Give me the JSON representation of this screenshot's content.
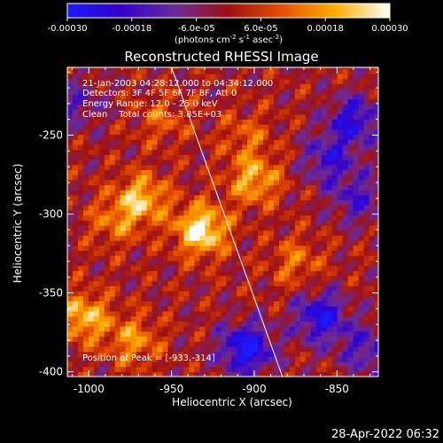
{
  "colorbar": {
    "ticks": [
      "-0.00030",
      "-0.00018",
      "-6.0e-05",
      "6.0e-05",
      "0.00018",
      "0.00030"
    ],
    "units_main": "(photons cm",
    "units_sup1": "-2",
    "units_mid": " s",
    "units_sup2": "-1",
    "units_end": " asec",
    "units_sup3": "-2",
    "units_close": ")",
    "stops": [
      "#1a1aff",
      "#3300cc",
      "#6a2a9a",
      "#a01010",
      "#e85000",
      "#ffb000",
      "#ffffff"
    ]
  },
  "chart_data": {
    "type": "heatmap",
    "title": "Reconstructed RHESSI Image",
    "xlabel": "Heliocentric X (arcsec)",
    "ylabel": "Heliocentric Y (arcsec)",
    "xlim": [
      -1013,
      -825
    ],
    "ylim": [
      -403,
      -207
    ],
    "xticks": [
      -1000,
      -950,
      -900,
      -850
    ],
    "xtick_labels": [
      "-1000",
      "-950",
      "-900",
      "-850"
    ],
    "yticks": [
      -400,
      -350,
      -300,
      -250
    ],
    "ytick_labels": [
      "-400",
      "-350",
      "-300",
      "-250"
    ],
    "color_range": [
      -0.0003,
      0.0003
    ],
    "peak": [
      -933,
      -314
    ],
    "hot_spots": [
      {
        "x": -932,
        "y": -310,
        "value": 0.0003
      },
      {
        "x": -900,
        "y": -278,
        "value": 0.0002
      },
      {
        "x": -968,
        "y": -290,
        "value": 0.00022
      },
      {
        "x": -1003,
        "y": -365,
        "value": 0.00022
      },
      {
        "x": -973,
        "y": -380,
        "value": 0.00016
      },
      {
        "x": -875,
        "y": -330,
        "value": 0.00012
      },
      {
        "x": -905,
        "y": -250,
        "value": 0.0001
      },
      {
        "x": -985,
        "y": -305,
        "value": 0.00012
      },
      {
        "x": -955,
        "y": -240,
        "value": 0.0001
      }
    ],
    "cold_spots": [
      {
        "x": -905,
        "y": -385,
        "value": -0.0003
      },
      {
        "x": -860,
        "y": -365,
        "value": -0.00025
      },
      {
        "x": -840,
        "y": -240,
        "value": -0.00022
      },
      {
        "x": -855,
        "y": -265,
        "value": -0.00018
      },
      {
        "x": -838,
        "y": -290,
        "value": -0.00016
      },
      {
        "x": -1007,
        "y": -230,
        "value": -0.00012
      },
      {
        "x": -833,
        "y": -385,
        "value": -0.00016
      }
    ],
    "limb_line": [
      [
        -950,
        -207
      ],
      [
        -883,
        -403
      ]
    ]
  },
  "annotations": {
    "time_range": "21-Jan-2003 04:28:12.000 to 04:34:12.000",
    "detectors": "Detectors: 3F 4F 5F 6F 7F 8F, Att 0",
    "energy": "Energy Range: 12.0 - 25.0 keV",
    "clean": "Clean    Total counts: 3.85E+03",
    "peak_position": "Position of Peak = [-933,-314]"
  },
  "footer": {
    "date": "28-Apr-2022 06:32"
  }
}
